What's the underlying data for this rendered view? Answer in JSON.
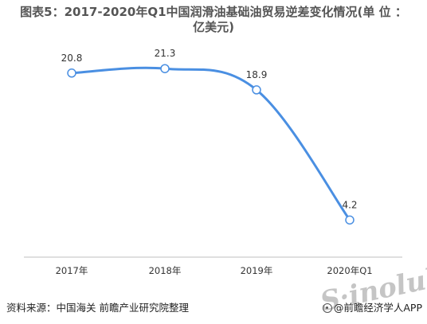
{
  "title_line1": "图表5：2017-2020年Q1中国润滑油基础油贸易逆差变化情况(单 位 ：",
  "title_line2": "亿美元)",
  "source": "资料来源：中国海关 前瞻产业研究院整理",
  "brand": "@前瞻经济学人APP",
  "watermark": "S·inolub.com",
  "colors": {
    "line": "#4a8fe2",
    "axis": "#bfbfbf",
    "text": "#333333"
  },
  "chart_data": {
    "type": "line",
    "categories": [
      "2017年",
      "2018年",
      "2019年",
      "2020年Q1"
    ],
    "series": [
      {
        "values": [
          20.8,
          21.3,
          18.9,
          4.2
        ]
      }
    ],
    "data_labels": [
      "20.8",
      "21.3",
      "18.9",
      "4.2"
    ],
    "ylim": [
      0,
      30
    ],
    "grid": false,
    "legend": "none"
  }
}
